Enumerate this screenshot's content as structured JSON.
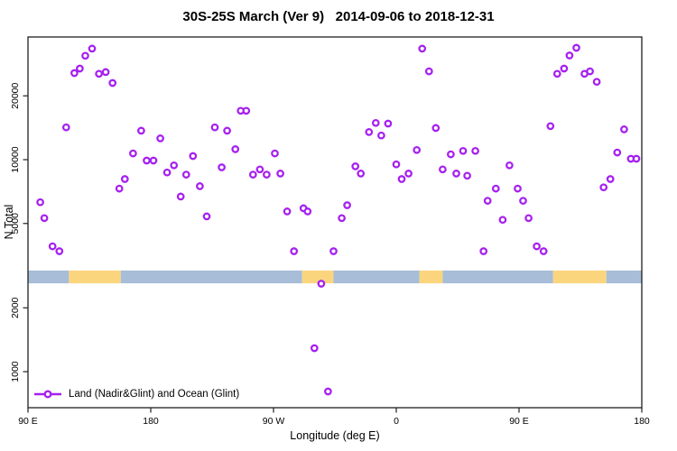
{
  "title": "30S-25S March (Ver 9)   2014-09-06 to 2018-12-31",
  "legend": {
    "label": "Land (Nadir&Glint) and Ocean (Glint)"
  },
  "colors": {
    "point": "#A620F0",
    "ocean_band": "#A7BDD8",
    "land_band": "#FBD57E",
    "axis": "#202020",
    "text": "#000000"
  },
  "chart_data": {
    "type": "scatter",
    "title": "30S-25S March (Ver 9)   2014-09-06 to 2018-12-31",
    "xlabel": "Longitude (deg E)",
    "ylabel": "N Total",
    "grid": false,
    "legend_position": "bottom-left-inside",
    "x_axis": {
      "note": "longitude axis, continuous degrees east 90..540 (wraps through 180, 90W, 0, 90E, 180)",
      "domain_deg": [
        90,
        540
      ],
      "ticks": [
        {
          "deg": 90,
          "label": "90 E"
        },
        {
          "deg": 180,
          "label": "180"
        },
        {
          "deg": 270,
          "label": "90 W"
        },
        {
          "deg": 360,
          "label": "0"
        },
        {
          "deg": 450,
          "label": "90 E"
        },
        {
          "deg": 540,
          "label": "180"
        }
      ]
    },
    "y_axis": {
      "scale": "log",
      "domain": [
        676,
        37900
      ],
      "ticks": [
        {
          "value": 1000,
          "label": "1000"
        },
        {
          "value": 2000,
          "label": "2000"
        },
        {
          "value": 5000,
          "label": "5000"
        },
        {
          "value": 10000,
          "label": "10000"
        },
        {
          "value": 20000,
          "label": "20000"
        }
      ]
    },
    "band": {
      "note": "horizontal strip marking land (orange) vs ocean (blue) longitudes",
      "y_range": [
        2610,
        3000
      ],
      "segments": [
        {
          "from": 90,
          "to": 120,
          "type": "ocean"
        },
        {
          "from": 120,
          "to": 158,
          "type": "land"
        },
        {
          "from": 158,
          "to": 291,
          "type": "ocean"
        },
        {
          "from": 291,
          "to": 314,
          "type": "land"
        },
        {
          "from": 314,
          "to": 377,
          "type": "ocean"
        },
        {
          "from": 377,
          "to": 394,
          "type": "land"
        },
        {
          "from": 394,
          "to": 475,
          "type": "ocean"
        },
        {
          "from": 475,
          "to": 514,
          "type": "land"
        },
        {
          "from": 514,
          "to": 540,
          "type": "ocean"
        }
      ]
    },
    "series": [
      {
        "name": "Land (Nadir&Glint) and Ocean (Glint)",
        "marker": "open-circle",
        "points": [
          [
            137,
            33400
          ],
          [
            132,
            30900
          ],
          [
            128,
            26900
          ],
          [
            124,
            25600
          ],
          [
            142,
            25400
          ],
          [
            147,
            25900
          ],
          [
            152,
            23000
          ],
          [
            118,
            14200
          ],
          [
            173,
            13700
          ],
          [
            187,
            12600
          ],
          [
            167,
            10700
          ],
          [
            177,
            9900
          ],
          [
            182,
            9900
          ],
          [
            197,
            9400
          ],
          [
            192,
            8700
          ],
          [
            161,
            8100
          ],
          [
            157,
            7300
          ],
          [
            99,
            6300
          ],
          [
            102,
            5300
          ],
          [
            202,
            6700
          ],
          [
            246,
            17000
          ],
          [
            250,
            17000
          ],
          [
            227,
            14200
          ],
          [
            236,
            13700
          ],
          [
            242,
            11200
          ],
          [
            211,
            10400
          ],
          [
            271,
            10700
          ],
          [
            232,
            9200
          ],
          [
            206,
            8500
          ],
          [
            255,
            8500
          ],
          [
            260,
            9000
          ],
          [
            265,
            8500
          ],
          [
            275,
            8600
          ],
          [
            216,
            7500
          ],
          [
            221,
            5400
          ],
          [
            280,
            5700
          ],
          [
            292,
            5900
          ],
          [
            295,
            5700
          ],
          [
            379,
            33400
          ],
          [
            384,
            26100
          ],
          [
            345,
            14900
          ],
          [
            354,
            14800
          ],
          [
            340,
            13500
          ],
          [
            349,
            13000
          ],
          [
            389,
            14100
          ],
          [
            375,
            11100
          ],
          [
            400,
            10600
          ],
          [
            409,
            11000
          ],
          [
            418,
            11000
          ],
          [
            330,
            9300
          ],
          [
            334,
            8600
          ],
          [
            360,
            9500
          ],
          [
            364,
            8100
          ],
          [
            369,
            8600
          ],
          [
            394,
            9000
          ],
          [
            404,
            8600
          ],
          [
            412,
            8400
          ],
          [
            324,
            6100
          ],
          [
            320,
            5300
          ],
          [
            427,
            6400
          ],
          [
            492,
            33700
          ],
          [
            487,
            31000
          ],
          [
            483,
            26900
          ],
          [
            478,
            25400
          ],
          [
            498,
            25400
          ],
          [
            502,
            26100
          ],
          [
            507,
            23300
          ],
          [
            473,
            14400
          ],
          [
            527,
            13900
          ],
          [
            522,
            10800
          ],
          [
            532,
            10100
          ],
          [
            536,
            10100
          ],
          [
            443,
            9400
          ],
          [
            433,
            7300
          ],
          [
            449,
            7300
          ],
          [
            453,
            6400
          ],
          [
            517,
            8100
          ],
          [
            512,
            7400
          ],
          [
            438,
            5200
          ],
          [
            457,
            5300
          ],
          [
            108,
            3900
          ],
          [
            113,
            3700
          ],
          [
            285,
            3700
          ],
          [
            314,
            3700
          ],
          [
            424,
            3700
          ],
          [
            463,
            3900
          ],
          [
            468,
            3700
          ],
          [
            305,
            2600
          ],
          [
            300,
            1290
          ],
          [
            310,
            806
          ]
        ]
      }
    ]
  }
}
